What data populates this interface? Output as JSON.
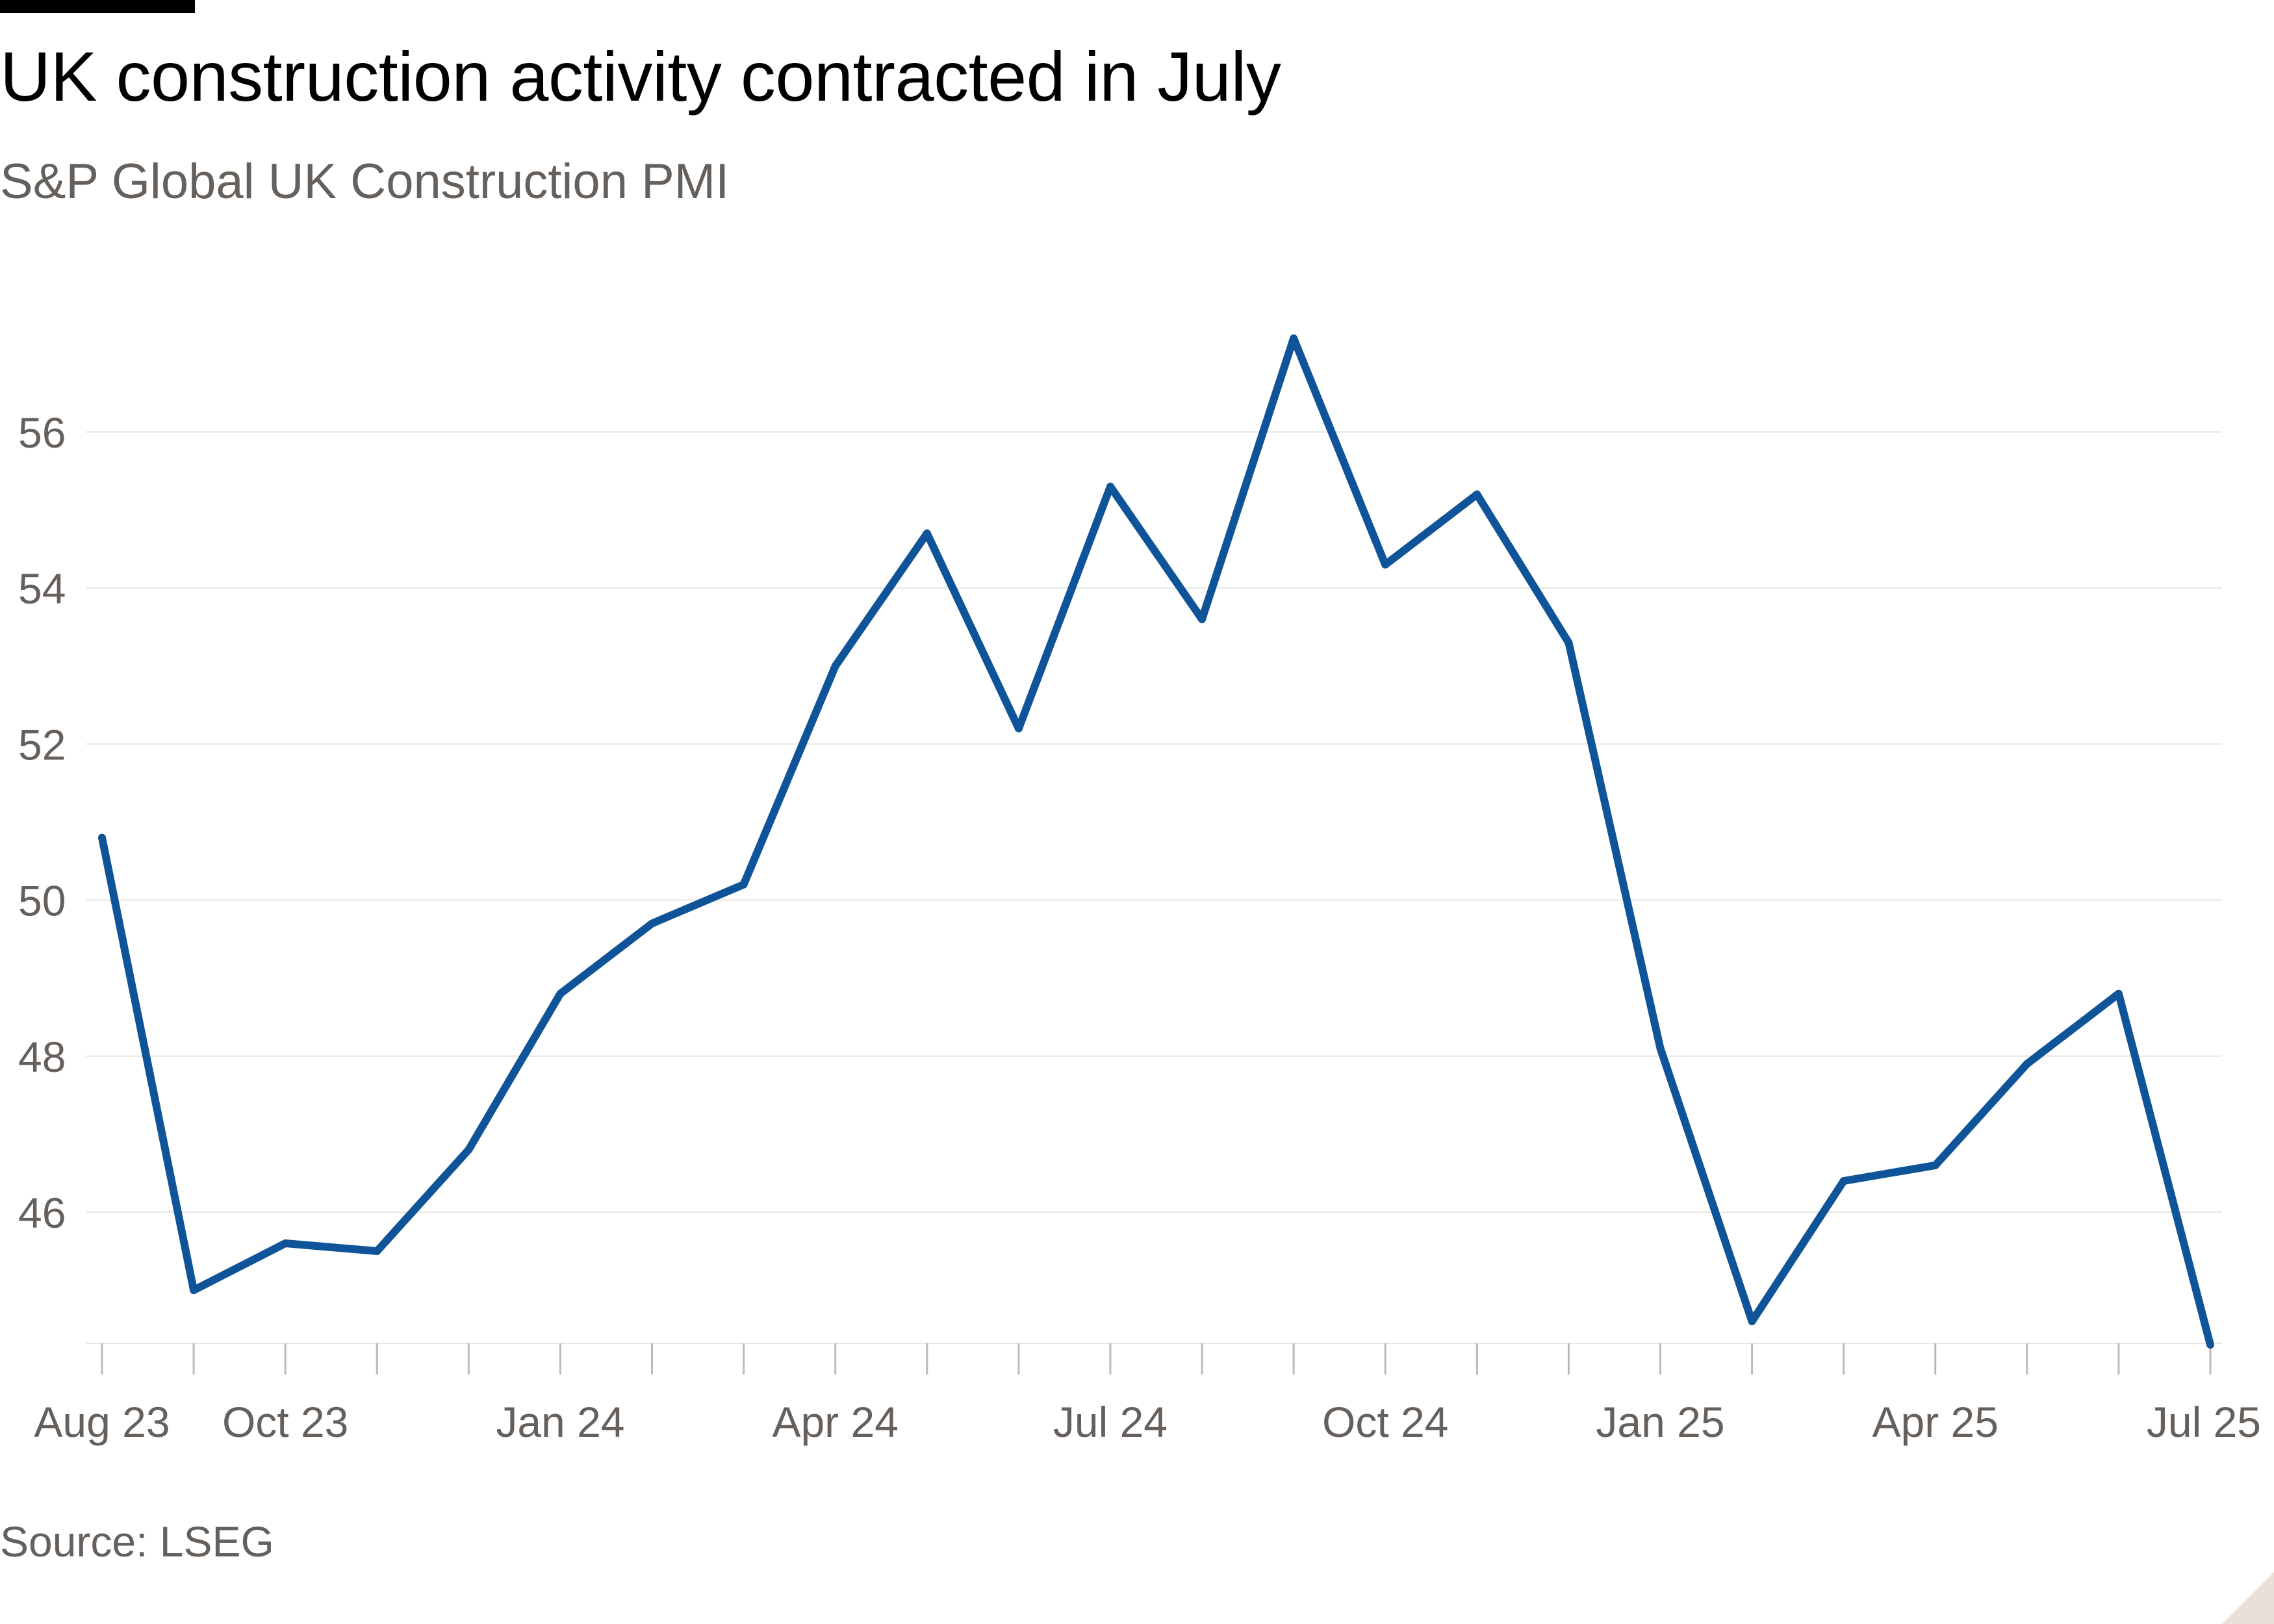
{
  "header": {
    "title": "UK construction activity contracted in July",
    "subtitle": "S&P Global UK Construction PMI"
  },
  "footer": {
    "source": "Source: LSEG"
  },
  "colors": {
    "line": "#0f5499",
    "grid": "#e9e5e1",
    "axis_text": "#66605c",
    "tick": "#bfb9b3",
    "title": "#000000"
  },
  "chart_data": {
    "type": "line",
    "title": "UK construction activity contracted in July",
    "subtitle": "S&P Global UK Construction PMI",
    "xlabel": "",
    "ylabel": "",
    "ylim": [
      44.2,
      57.5
    ],
    "yticks": [
      46,
      48,
      50,
      52,
      54,
      56
    ],
    "grid": true,
    "legend": "none",
    "x": [
      "Aug 23",
      "Sep 23",
      "Oct 23",
      "Nov 23",
      "Dec 23",
      "Jan 24",
      "Feb 24",
      "Mar 24",
      "Apr 24",
      "May 24",
      "Jun 24",
      "Jul 24",
      "Aug 24",
      "Sep 24",
      "Oct 24",
      "Nov 24",
      "Dec 24",
      "Jan 25",
      "Feb 25",
      "Mar 25",
      "Apr 25",
      "May 25",
      "Jun 25",
      "Jul 25"
    ],
    "xtick_labels": [
      {
        "index": 0,
        "label": "Aug 23"
      },
      {
        "index": 2,
        "label": "Oct 23"
      },
      {
        "index": 5,
        "label": "Jan 24"
      },
      {
        "index": 8,
        "label": "Apr 24"
      },
      {
        "index": 11,
        "label": "Jul 24"
      },
      {
        "index": 14,
        "label": "Oct 24"
      },
      {
        "index": 17,
        "label": "Jan 25"
      },
      {
        "index": 20,
        "label": "Apr 25"
      },
      {
        "index": 23,
        "label": "Jul 25"
      }
    ],
    "series": [
      {
        "values": [
          50.8,
          45.0,
          45.6,
          45.5,
          46.8,
          48.8,
          49.7,
          50.2,
          53.0,
          54.7,
          52.2,
          55.3,
          53.6,
          57.2,
          54.3,
          55.2,
          53.3,
          48.1,
          44.6,
          46.4,
          46.6,
          47.9,
          48.8,
          44.3
        ]
      }
    ]
  }
}
